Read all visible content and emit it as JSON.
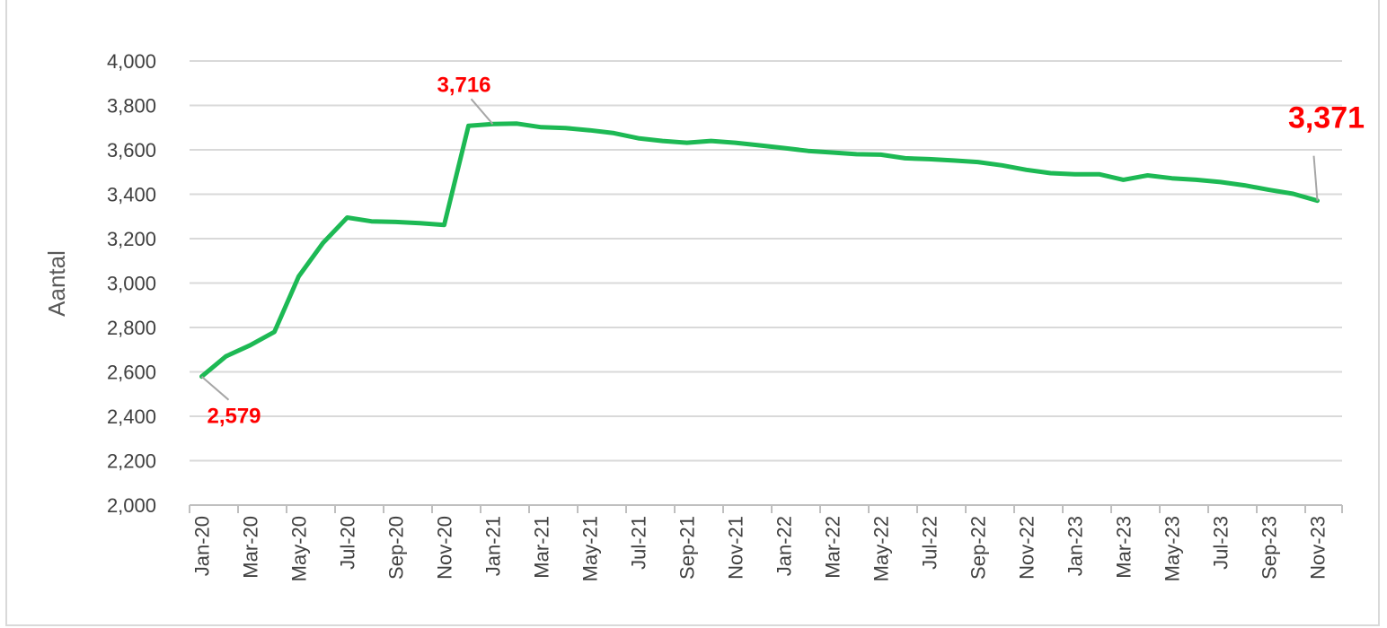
{
  "chart_data": {
    "type": "line",
    "title": "",
    "ylabel": "Aantal",
    "xlabel": "",
    "ylim": [
      2000,
      4000
    ],
    "ytick_step": 200,
    "grid": true,
    "line_color": "#1db954",
    "annotation_color": "#ff0000",
    "x": [
      "Jan-20",
      "Feb-20",
      "Mar-20",
      "Apr-20",
      "May-20",
      "Jun-20",
      "Jul-20",
      "Aug-20",
      "Sep-20",
      "Oct-20",
      "Nov-20",
      "Dec-20",
      "Jan-21",
      "Feb-21",
      "Mar-21",
      "Apr-21",
      "May-21",
      "Jun-21",
      "Jul-21",
      "Aug-21",
      "Sep-21",
      "Oct-21",
      "Nov-21",
      "Dec-21",
      "Jan-22",
      "Feb-22",
      "Mar-22",
      "Apr-22",
      "May-22",
      "Jun-22",
      "Jul-22",
      "Aug-22",
      "Sep-22",
      "Oct-22",
      "Nov-22",
      "Dec-22",
      "Jan-23",
      "Feb-23",
      "Mar-23",
      "Apr-23",
      "May-23",
      "Jun-23",
      "Jul-23",
      "Aug-23",
      "Sep-23",
      "Oct-23",
      "Nov-23"
    ],
    "tick_labels": [
      "Jan-20",
      "Mar-20",
      "May-20",
      "Jul-20",
      "Sep-20",
      "Nov-20",
      "Jan-21",
      "Mar-21",
      "May-21",
      "Jul-21",
      "Sep-21",
      "Nov-21",
      "Jan-22",
      "Mar-22",
      "May-22",
      "Jul-22",
      "Sep-22",
      "Nov-22",
      "Jan-23",
      "Mar-23",
      "May-23",
      "Jul-23",
      "Sep-23",
      "Nov-23"
    ],
    "yticks": [
      "2,000",
      "2,200",
      "2,400",
      "2,600",
      "2,800",
      "3,000",
      "3,200",
      "3,400",
      "3,600",
      "3,800",
      "4,000"
    ],
    "series": [
      {
        "values": [
          2579,
          2670,
          2720,
          2780,
          3030,
          3180,
          3295,
          3278,
          3275,
          3270,
          3262,
          3708,
          3716,
          3718,
          3702,
          3698,
          3688,
          3675,
          3652,
          3640,
          3632,
          3640,
          3632,
          3620,
          3608,
          3595,
          3588,
          3580,
          3578,
          3562,
          3558,
          3552,
          3545,
          3530,
          3510,
          3495,
          3490,
          3490,
          3465,
          3485,
          3472,
          3465,
          3455,
          3440,
          3420,
          3402,
          3371
        ]
      }
    ],
    "annotations": [
      {
        "text": "2,579",
        "x": "Jan-20",
        "value": 2579,
        "size": "medium"
      },
      {
        "text": "3,716",
        "x": "Jan-21",
        "value": 3716,
        "size": "medium"
      },
      {
        "text": "3,371",
        "x": "Nov-23",
        "value": 3371,
        "size": "large"
      }
    ]
  }
}
